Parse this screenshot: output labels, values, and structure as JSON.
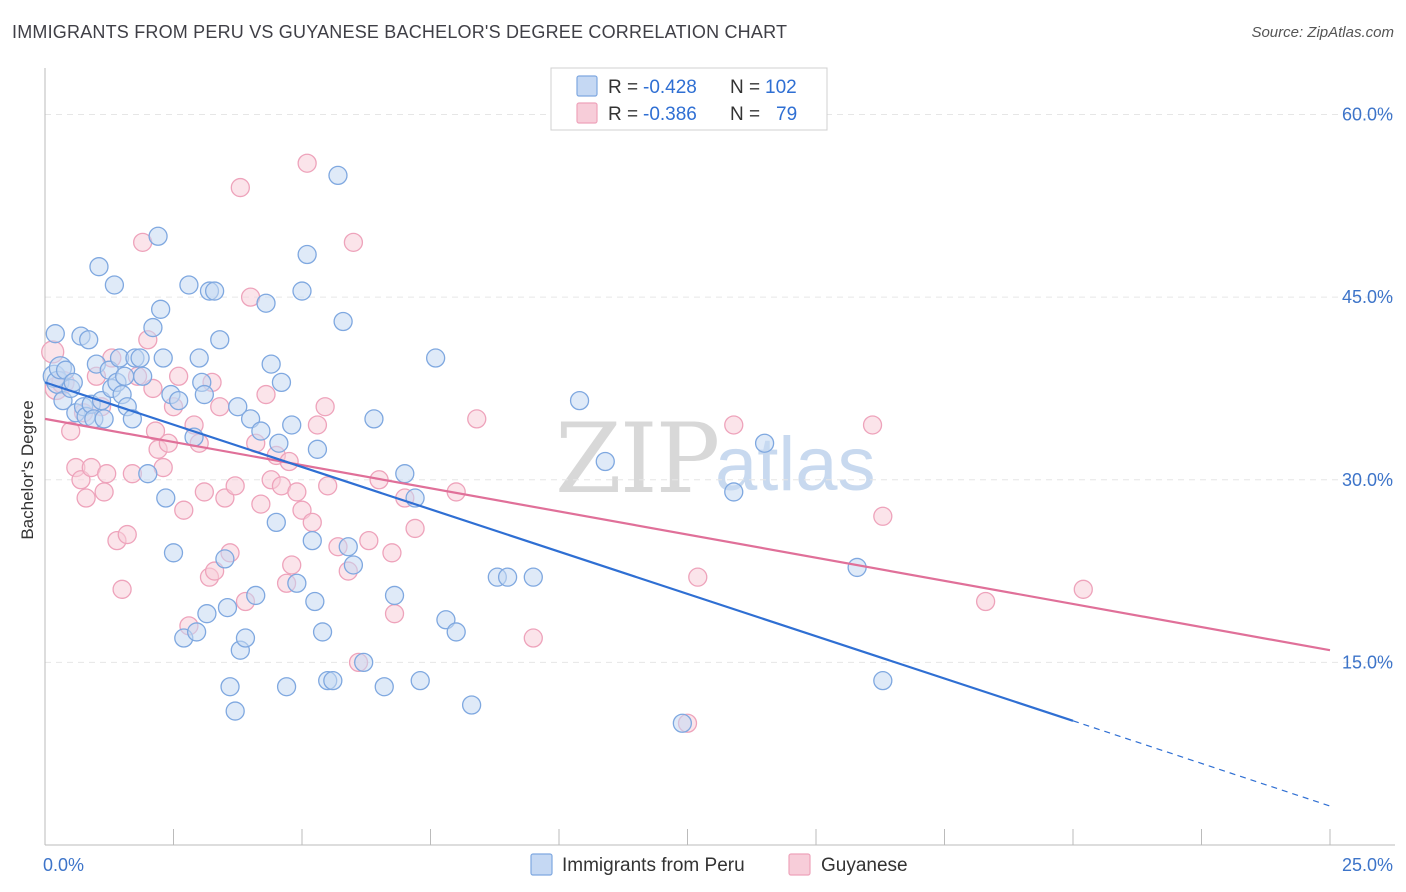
{
  "title": "IMMIGRANTS FROM PERU VS GUYANESE BACHELOR'S DEGREE CORRELATION CHART",
  "source": "Source: ZipAtlas.com",
  "watermark": {
    "part1": "ZIP",
    "part2": "atlas"
  },
  "legend": {
    "row1": {
      "r_label": "R =",
      "r_value": "-0.428",
      "n_label": "N =",
      "n_value": "102"
    },
    "row2": {
      "r_label": "R =",
      "r_value": "-0.386",
      "n_label": "N =",
      "n_value": "79"
    }
  },
  "colors": {
    "blue": "#7fa8e0",
    "blue_fill": "#c5d8f3",
    "blue_line": "#2f6fd3",
    "pink": "#eea3bb",
    "pink_fill": "#f7cdd9",
    "pink_line": "#e07099",
    "grid": "#e6e6e6",
    "tick_text": "#3d74c9"
  },
  "chart_data": {
    "type": "scatter",
    "title": "IMMIGRANTS FROM PERU VS GUYANESE BACHELOR'S DEGREE CORRELATION CHART",
    "xlabel": "",
    "ylabel": "Bachelor's Degree",
    "xlim": [
      0,
      25
    ],
    "ylim": [
      0,
      63
    ],
    "x_tick_labels": [
      "0.0%",
      "25.0%"
    ],
    "y_ticks": [
      15,
      30,
      45,
      60
    ],
    "y_tick_labels": [
      "15.0%",
      "30.0%",
      "45.0%",
      "60.0%"
    ],
    "grid": true,
    "legend_position": "top-center",
    "series": [
      {
        "name": "Immigrants from Peru",
        "color": "#7fa8e0",
        "r": -0.428,
        "n": 102,
        "trend": {
          "x0": 0,
          "y0": 38.0,
          "x1": 20,
          "y1": 10.2,
          "dash_to_x": 25,
          "dash_to_y": 3.2
        },
        "points": [
          [
            0.18,
            38.5
          ],
          [
            0.25,
            38.0
          ],
          [
            0.3,
            39.2
          ],
          [
            0.35,
            36.5
          ],
          [
            0.2,
            42.0
          ],
          [
            0.4,
            39.0
          ],
          [
            0.5,
            37.5
          ],
          [
            0.55,
            38.0
          ],
          [
            0.6,
            35.5
          ],
          [
            0.7,
            41.8
          ],
          [
            0.75,
            36.0
          ],
          [
            0.8,
            35.2
          ],
          [
            0.85,
            41.5
          ],
          [
            0.9,
            36.2
          ],
          [
            0.95,
            35.0
          ],
          [
            1.0,
            39.5
          ],
          [
            1.05,
            47.5
          ],
          [
            1.1,
            36.5
          ],
          [
            1.15,
            35.0
          ],
          [
            1.25,
            39.0
          ],
          [
            1.3,
            37.5
          ],
          [
            1.35,
            46.0
          ],
          [
            1.4,
            38.0
          ],
          [
            1.45,
            40.0
          ],
          [
            1.5,
            37.0
          ],
          [
            1.55,
            38.5
          ],
          [
            1.6,
            36.0
          ],
          [
            1.7,
            35.0
          ],
          [
            1.75,
            40.0
          ],
          [
            1.85,
            40.0
          ],
          [
            1.9,
            38.5
          ],
          [
            2.0,
            30.5
          ],
          [
            2.1,
            42.5
          ],
          [
            2.2,
            50.0
          ],
          [
            2.25,
            44.0
          ],
          [
            2.3,
            40.0
          ],
          [
            2.35,
            28.5
          ],
          [
            2.45,
            37.0
          ],
          [
            2.5,
            24.0
          ],
          [
            2.6,
            36.5
          ],
          [
            2.7,
            17.0
          ],
          [
            2.8,
            46.0
          ],
          [
            2.9,
            33.5
          ],
          [
            3.0,
            40.0
          ],
          [
            3.05,
            38.0
          ],
          [
            3.1,
            37.0
          ],
          [
            3.15,
            19.0
          ],
          [
            3.2,
            45.5
          ],
          [
            3.3,
            45.5
          ],
          [
            3.4,
            41.5
          ],
          [
            3.5,
            23.5
          ],
          [
            3.55,
            19.5
          ],
          [
            3.6,
            13.0
          ],
          [
            3.7,
            11.0
          ],
          [
            3.75,
            36.0
          ],
          [
            3.8,
            16.0
          ],
          [
            3.9,
            17.0
          ],
          [
            4.0,
            35.0
          ],
          [
            4.1,
            20.5
          ],
          [
            4.2,
            34.0
          ],
          [
            4.3,
            44.5
          ],
          [
            4.4,
            39.5
          ],
          [
            4.5,
            26.5
          ],
          [
            4.6,
            38.0
          ],
          [
            4.7,
            13.0
          ],
          [
            4.8,
            34.5
          ],
          [
            4.9,
            21.5
          ],
          [
            5.0,
            45.5
          ],
          [
            5.1,
            48.5
          ],
          [
            5.2,
            25.0
          ],
          [
            5.3,
            32.5
          ],
          [
            5.4,
            17.5
          ],
          [
            5.5,
            13.5
          ],
          [
            5.6,
            13.5
          ],
          [
            5.7,
            55.0
          ],
          [
            5.8,
            43.0
          ],
          [
            5.9,
            24.5
          ],
          [
            6.0,
            23.0
          ],
          [
            6.2,
            15.0
          ],
          [
            6.4,
            35.0
          ],
          [
            6.6,
            13.0
          ],
          [
            6.8,
            20.5
          ],
          [
            7.0,
            30.5
          ],
          [
            7.2,
            28.5
          ],
          [
            7.6,
            40.0
          ],
          [
            7.8,
            18.5
          ],
          [
            8.0,
            17.5
          ],
          [
            8.3,
            11.5
          ],
          [
            8.8,
            22.0
          ],
          [
            9.0,
            22.0
          ],
          [
            9.5,
            22.0
          ],
          [
            10.4,
            36.5
          ],
          [
            10.9,
            31.5
          ],
          [
            12.4,
            10.0
          ],
          [
            13.4,
            29.0
          ],
          [
            14.0,
            33.0
          ],
          [
            15.8,
            22.8
          ],
          [
            16.3,
            13.5
          ],
          [
            7.3,
            13.5
          ],
          [
            4.55,
            33.0
          ],
          [
            5.25,
            20.0
          ],
          [
            2.95,
            17.5
          ]
        ]
      },
      {
        "name": "Guyanese",
        "color": "#eea3bb",
        "r": -0.386,
        "n": 79,
        "trend": {
          "x0": 0,
          "y0": 35.0,
          "x1": 25,
          "y1": 16.0
        },
        "points": [
          [
            0.15,
            40.5
          ],
          [
            0.22,
            37.5
          ],
          [
            0.35,
            38.0
          ],
          [
            0.5,
            34.0
          ],
          [
            0.6,
            31.0
          ],
          [
            0.7,
            30.0
          ],
          [
            0.8,
            28.5
          ],
          [
            0.9,
            31.0
          ],
          [
            1.0,
            38.5
          ],
          [
            1.1,
            36.0
          ],
          [
            1.2,
            30.5
          ],
          [
            1.3,
            40.0
          ],
          [
            1.4,
            25.0
          ],
          [
            1.5,
            21.0
          ],
          [
            1.6,
            25.5
          ],
          [
            1.7,
            30.5
          ],
          [
            1.8,
            38.5
          ],
          [
            1.9,
            49.5
          ],
          [
            2.0,
            41.5
          ],
          [
            2.1,
            37.5
          ],
          [
            2.2,
            32.5
          ],
          [
            2.3,
            31.0
          ],
          [
            2.4,
            33.0
          ],
          [
            2.5,
            36.0
          ],
          [
            2.6,
            38.5
          ],
          [
            2.7,
            27.5
          ],
          [
            2.8,
            18.0
          ],
          [
            2.9,
            34.5
          ],
          [
            3.0,
            33.0
          ],
          [
            3.1,
            29.0
          ],
          [
            3.2,
            22.0
          ],
          [
            3.3,
            22.5
          ],
          [
            3.4,
            36.0
          ],
          [
            3.5,
            28.5
          ],
          [
            3.6,
            24.0
          ],
          [
            3.7,
            29.5
          ],
          [
            3.8,
            54.0
          ],
          [
            3.9,
            20.0
          ],
          [
            4.0,
            45.0
          ],
          [
            4.1,
            33.0
          ],
          [
            4.2,
            28.0
          ],
          [
            4.3,
            37.0
          ],
          [
            4.4,
            30.0
          ],
          [
            4.5,
            32.0
          ],
          [
            4.6,
            29.5
          ],
          [
            4.7,
            21.5
          ],
          [
            4.8,
            23.0
          ],
          [
            4.9,
            29.0
          ],
          [
            5.0,
            27.5
          ],
          [
            5.1,
            56.0
          ],
          [
            5.2,
            26.5
          ],
          [
            5.3,
            34.5
          ],
          [
            5.5,
            29.5
          ],
          [
            5.7,
            24.5
          ],
          [
            5.9,
            22.5
          ],
          [
            6.0,
            49.5
          ],
          [
            6.1,
            15.0
          ],
          [
            6.3,
            25.0
          ],
          [
            6.5,
            30.0
          ],
          [
            6.8,
            19.0
          ],
          [
            7.0,
            28.5
          ],
          [
            7.2,
            26.0
          ],
          [
            8.0,
            29.0
          ],
          [
            9.5,
            17.0
          ],
          [
            12.5,
            10.0
          ],
          [
            12.7,
            22.0
          ],
          [
            13.4,
            34.5
          ],
          [
            16.1,
            34.5
          ],
          [
            16.3,
            27.0
          ],
          [
            18.3,
            20.0
          ],
          [
            20.2,
            21.0
          ],
          [
            8.4,
            35.0
          ],
          [
            3.25,
            38.0
          ],
          [
            2.15,
            34.0
          ],
          [
            1.15,
            29.0
          ],
          [
            0.75,
            35.5
          ],
          [
            4.75,
            31.5
          ],
          [
            5.45,
            36.0
          ],
          [
            6.75,
            24.0
          ]
        ]
      }
    ]
  }
}
